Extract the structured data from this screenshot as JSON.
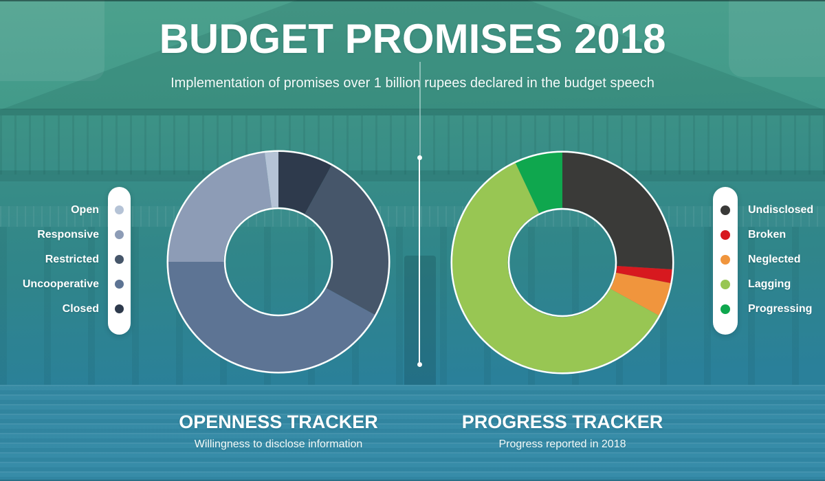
{
  "page": {
    "title": "BUDGET PROMISES 2018",
    "subtitle": "Implementation of promises over 1 billion rupees declared in the budget speech"
  },
  "colors": {
    "background_top": "#4ca18d",
    "background_bottom": "#2d87a6",
    "legend_panel": "#ffffff",
    "text": "#ffffff"
  },
  "chart_data": [
    {
      "id": "openness",
      "type": "donut",
      "title": "OPENNESS TRACKER",
      "subtitle": "Willingness to disclose information",
      "legend_position": "left",
      "categories": [
        {
          "label": "Open",
          "color": "#b5c3d6",
          "value_pct": 2
        },
        {
          "label": "Responsive",
          "color": "#8d9cb6",
          "value_pct": 23
        },
        {
          "label": "Restricted",
          "color": "#46566a",
          "value_pct": 25
        },
        {
          "label": "Uncooperative",
          "color": "#5d7494",
          "value_pct": 42
        },
        {
          "label": "Closed",
          "color": "#2e3a4c",
          "value_pct": 8
        }
      ],
      "draw_order_clockwise_from_top": [
        "Closed",
        "Restricted",
        "Uncooperative",
        "Responsive",
        "Open"
      ]
    },
    {
      "id": "progress",
      "type": "donut",
      "title": "PROGRESS TRACKER",
      "subtitle": "Progress reported in 2018",
      "legend_position": "right",
      "categories": [
        {
          "label": "Undisclosed",
          "color": "#3a3a38",
          "value_pct": 26
        },
        {
          "label": "Broken",
          "color": "#d7191f",
          "value_pct": 2
        },
        {
          "label": "Neglected",
          "color": "#f0953d",
          "value_pct": 5
        },
        {
          "label": "Lagging",
          "color": "#98c653",
          "value_pct": 60
        },
        {
          "label": "Progressing",
          "color": "#0fa74e",
          "value_pct": 7
        }
      ],
      "draw_order_clockwise_from_top": [
        "Undisclosed",
        "Broken",
        "Neglected",
        "Lagging",
        "Progressing"
      ]
    }
  ]
}
